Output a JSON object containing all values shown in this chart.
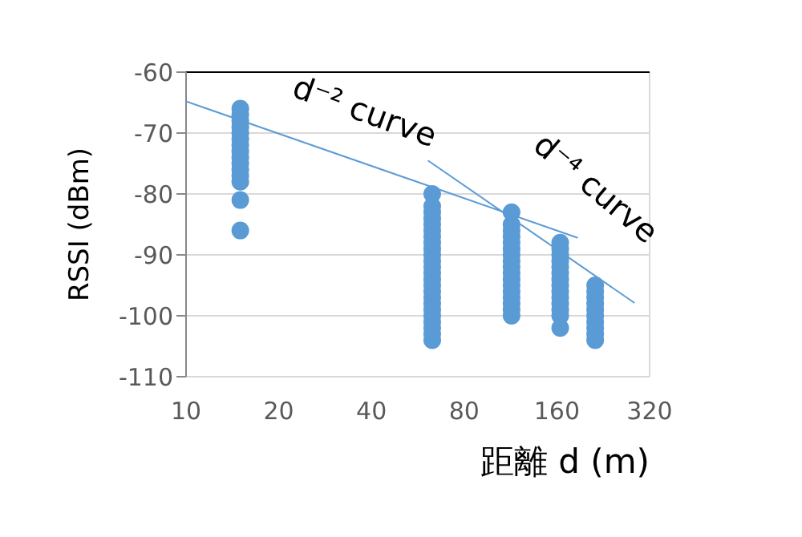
{
  "chart_data": {
    "type": "scatter",
    "xlabel": "距離 d (m)",
    "ylabel": "RSSI (dBm)",
    "log": "x",
    "xlim": [
      10,
      320
    ],
    "xticks": [
      10,
      20,
      40,
      80,
      160,
      320
    ],
    "ylim": [
      -110,
      -60
    ],
    "yticks": [
      -110,
      -100,
      -90,
      -80,
      -70,
      -60
    ],
    "grid": true,
    "legend": false,
    "marker": "circle",
    "series": [
      {
        "type": "scatter",
        "color": "#5b9bd5",
        "x": [
          15,
          15,
          15,
          15,
          15,
          15,
          15,
          15,
          15,
          15,
          15,
          15,
          15,
          15,
          15,
          63,
          63,
          63,
          63,
          63,
          63,
          63,
          63,
          63,
          63,
          63,
          63,
          63,
          63,
          63,
          63,
          63,
          63,
          63,
          63,
          63,
          63,
          63,
          63,
          114,
          114,
          114,
          114,
          114,
          114,
          114,
          114,
          114,
          114,
          114,
          114,
          114,
          114,
          114,
          114,
          114,
          164,
          164,
          164,
          164,
          164,
          164,
          164,
          164,
          164,
          164,
          164,
          164,
          164,
          164,
          213,
          213,
          213,
          213,
          213,
          213,
          213,
          213,
          213,
          213
        ],
        "values": [
          -66,
          -67,
          -68,
          -69,
          -70,
          -71,
          -72,
          -73,
          -74,
          -75,
          -76,
          -77,
          -78,
          -81,
          -86,
          -80,
          -82,
          -83,
          -84,
          -85,
          -86,
          -87,
          -88,
          -89,
          -90,
          -91,
          -92,
          -93,
          -94,
          -95,
          -96,
          -97,
          -98,
          -99,
          -100,
          -101,
          -102,
          -103,
          -104,
          -83,
          -85,
          -86,
          -87,
          -88,
          -89,
          -90,
          -91,
          -92,
          -93,
          -94,
          -95,
          -96,
          -97,
          -98,
          -99,
          -100,
          -88,
          -89,
          -90,
          -91,
          -92,
          -93,
          -94,
          -95,
          -96,
          -97,
          -98,
          -99,
          -100,
          -102,
          -95,
          -96,
          -97,
          -98,
          -99,
          -100,
          -101,
          -102,
          -103,
          -104
        ]
      },
      {
        "type": "line",
        "name": "d⁻² curve",
        "color": "#5b9bd5",
        "marker": "none",
        "x": [
          10,
          187
        ],
        "values": [
          -64.8,
          -87.2
        ]
      },
      {
        "type": "line",
        "name": "d⁻⁴ curve",
        "color": "#5b9bd5",
        "marker": "none",
        "x": [
          61,
          286
        ],
        "values": [
          -74.5,
          -97.9
        ]
      }
    ]
  }
}
